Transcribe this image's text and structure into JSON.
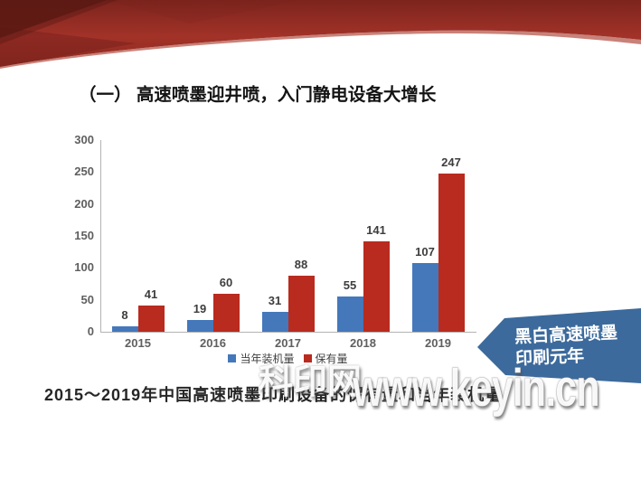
{
  "slide": {
    "title": "（一） 高速喷墨迎井喷，入门静电设备大增长",
    "caption": "2015～2019年中国高速喷墨印刷设备的保有量和当年装机量",
    "watermark": {
      "part1": "科印网",
      "part2": "www.keyin.cn"
    },
    "callout": {
      "line1": "黑白高速喷墨",
      "line2": "印刷元年",
      "color": "#3c6a9c"
    }
  },
  "chart_data": {
    "type": "bar",
    "categories": [
      "2015",
      "2016",
      "2017",
      "2018",
      "2019"
    ],
    "series": [
      {
        "name": "当年装机量",
        "color": "#4478bb",
        "values": [
          8,
          19,
          31,
          55,
          107
        ]
      },
      {
        "name": "保有量",
        "color": "#b92b1e",
        "values": [
          41,
          60,
          88,
          141,
          247
        ]
      }
    ],
    "ylim": [
      0,
      300
    ],
    "yticks": [
      0,
      50,
      100,
      150,
      200,
      250,
      300
    ],
    "grid": false,
    "legend_position": "bottom"
  },
  "colors": {
    "banner_dark": "#6b1d17",
    "banner_main": "#9e2f25",
    "banner_light_edge": "#b5584c",
    "axis": "#b3b3b3"
  }
}
